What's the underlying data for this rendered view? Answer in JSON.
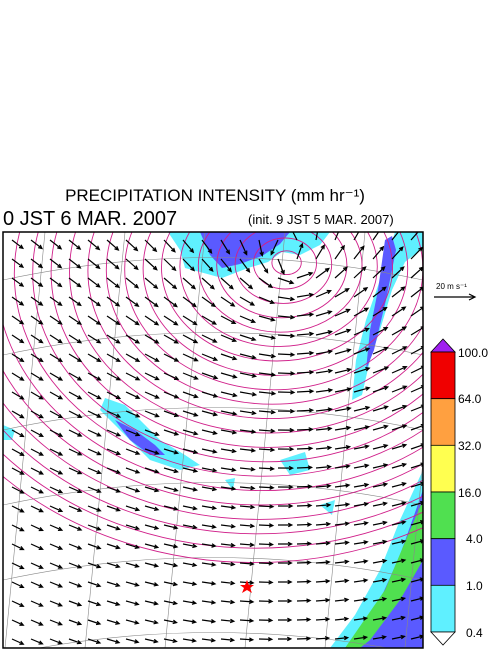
{
  "header": {
    "title": "PRECIPITATION INTENSITY (mm hr⁻¹)",
    "valid_time": "0 JST 6 MAR. 2007",
    "init_time": "(init. 9 JST 5 MAR. 2007)"
  },
  "reference_vector": {
    "label": "20 m s⁻¹"
  },
  "colorbar": {
    "labels": [
      "100.0",
      "64.0",
      "32.0",
      "16.0",
      "4.0",
      "1.0",
      "0.4"
    ]
  }
}
